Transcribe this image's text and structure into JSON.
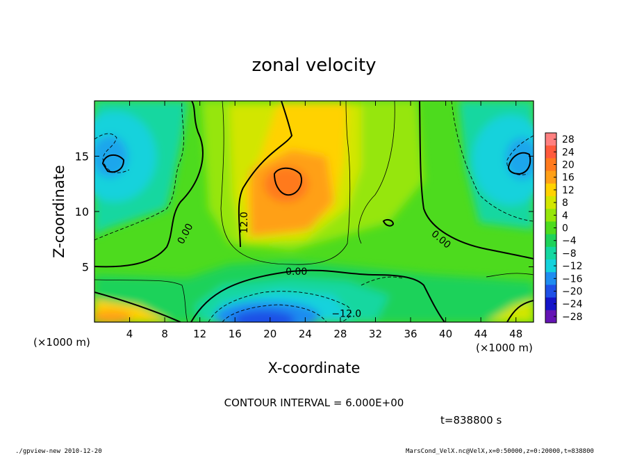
{
  "chart_data": {
    "type": "heatmap",
    "title": "zonal velocity",
    "xlabel": "X-coordinate",
    "ylabel": "Z-coordinate",
    "x_unit_note_left": "(×1000 m)",
    "x_unit_note_right": "(×1000 m)",
    "xlim": [
      0,
      50
    ],
    "ylim": [
      0,
      20
    ],
    "x_ticks": [
      4,
      8,
      12,
      16,
      20,
      24,
      28,
      32,
      36,
      40,
      44,
      48
    ],
    "y_ticks": [
      5,
      10,
      15
    ],
    "contour_interval_text": "CONTOUR INTERVAL = 6.000E+00",
    "time_text": "t=838800 s",
    "colorbar": {
      "levels": [
        28,
        24,
        20,
        16,
        12,
        8,
        4,
        0,
        -4,
        -8,
        -12,
        -16,
        -20,
        -24,
        -28
      ],
      "labels": [
        "28",
        "24",
        "20",
        "16",
        "12",
        "8",
        "4",
        "0",
        "−4",
        "−8",
        "−12",
        "−16",
        "−20",
        "−24",
        "−28"
      ],
      "colors": [
        "#ff8080",
        "#ff5a3c",
        "#ff7a1e",
        "#ffa018",
        "#ffd200",
        "#d2e600",
        "#96e60a",
        "#4ddb1e",
        "#1ed25a",
        "#14d7a0",
        "#14d2dc",
        "#1e8cf0",
        "#1e50e6",
        "#1414c8",
        "#6414b4"
      ]
    },
    "contour_labels": [
      {
        "text": "0.00",
        "x": 10.3,
        "z": 8.0,
        "angle": -62
      },
      {
        "text": "12.0",
        "x": 17.0,
        "z": 9.0,
        "angle": -90
      },
      {
        "text": "0.00",
        "x": 23.0,
        "z": 4.6,
        "angle": 0
      },
      {
        "text": "0.00",
        "x": 39.5,
        "z": 7.5,
        "angle": 40
      },
      {
        "text": "−12.0",
        "x": 28.7,
        "z": 0.8,
        "angle": 0
      }
    ],
    "features": [
      {
        "value": 17,
        "x": 22,
        "z": 12.5,
        "note": "maximum aloft"
      },
      {
        "value": -18,
        "x": 21,
        "z": 1,
        "note": "minimum near surface"
      },
      {
        "value": -12,
        "x": 2,
        "z": 15,
        "note": "left upper negative"
      },
      {
        "value": -12,
        "x": 48,
        "z": 15.5,
        "note": "right upper negative"
      },
      {
        "value": 11,
        "x": 3,
        "z": 1,
        "note": "lower-left positive"
      },
      {
        "value": 9,
        "x": 49,
        "z": 1.3,
        "note": "lower-right positive"
      }
    ]
  },
  "footer": {
    "left": "./gpview-new  2010-12-20",
    "right": "MarsCond_VelX.nc@VelX,x=0:50000,z=0:20000,t=838800"
  }
}
